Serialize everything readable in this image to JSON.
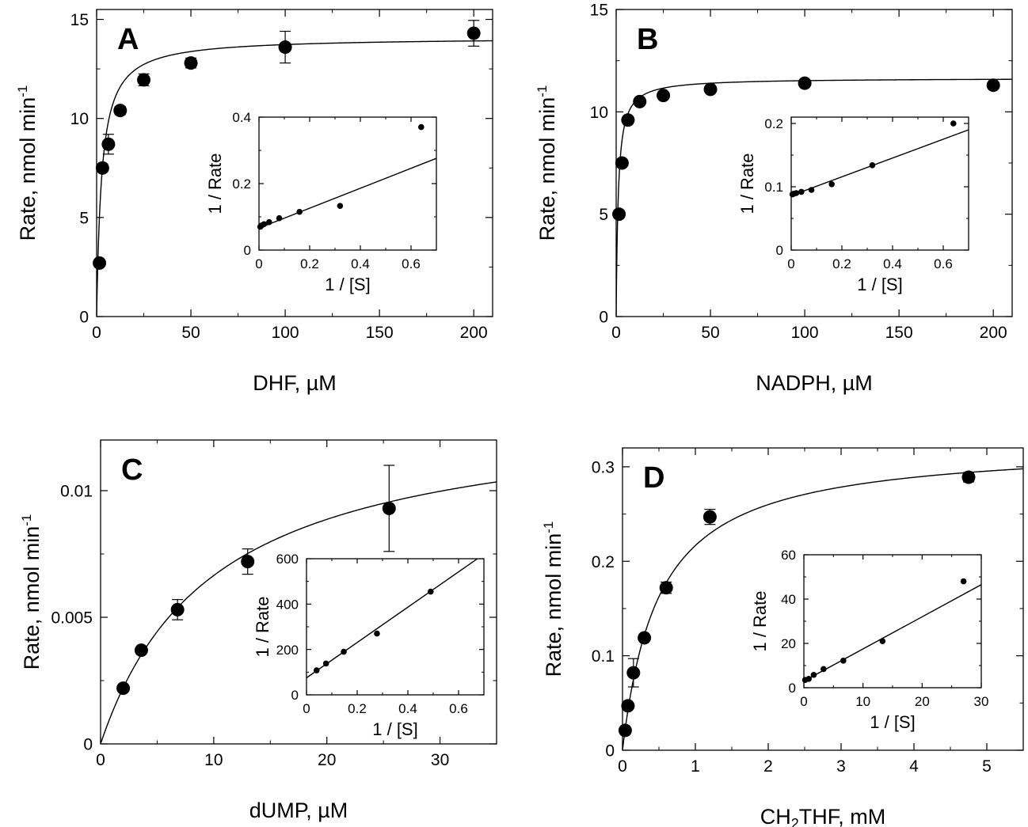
{
  "chart_data": [
    {
      "type": "scatter",
      "panel_label": "A",
      "xlabel": "DHF, µM",
      "ylabel": "Rate, nmol min",
      "ylabel_sup": "-1",
      "xlim": [
        0,
        210
      ],
      "ylim": [
        0,
        15.5
      ],
      "xticks": [
        0,
        50,
        100,
        150,
        200
      ],
      "xtick_labels": [
        "0",
        "50",
        "100",
        "150",
        "200"
      ],
      "yticks": [
        0,
        5,
        10,
        15
      ],
      "ytick_labels": [
        "0",
        "5",
        "10",
        "15"
      ],
      "points": [
        {
          "x": 1.5,
          "y": 2.7,
          "err": 0.15
        },
        {
          "x": 3.1,
          "y": 7.5,
          "err": 0.2
        },
        {
          "x": 6.25,
          "y": 8.7,
          "err": 0.5
        },
        {
          "x": 12.5,
          "y": 10.4,
          "err": 0.2
        },
        {
          "x": 25,
          "y": 11.95,
          "err": 0.3
        },
        {
          "x": 50,
          "y": 12.8,
          "err": 0.25
        },
        {
          "x": 100,
          "y": 13.6,
          "err": 0.8
        },
        {
          "x": 200,
          "y": 14.3,
          "err": 0.65
        }
      ],
      "fit": {
        "model": "michaelis-menten",
        "vmax": 14.1,
        "km": 2.7
      },
      "inset": {
        "xlabel": "1 / [S]",
        "ylabel": "1 / Rate",
        "xlim": [
          0,
          0.7
        ],
        "ylim": [
          0,
          0.4
        ],
        "xticks": [
          0,
          0.2,
          0.4,
          0.6
        ],
        "xtick_labels": [
          "0",
          "0.2",
          "0.4",
          "0.6"
        ],
        "yticks": [
          0,
          0.2,
          0.4
        ],
        "ytick_labels": [
          "0",
          "0.2",
          "0.4"
        ],
        "points": [
          {
            "x": 0.005,
            "y": 0.07
          },
          {
            "x": 0.01,
            "y": 0.074
          },
          {
            "x": 0.02,
            "y": 0.078
          },
          {
            "x": 0.04,
            "y": 0.084
          },
          {
            "x": 0.08,
            "y": 0.096
          },
          {
            "x": 0.16,
            "y": 0.115
          },
          {
            "x": 0.32,
            "y": 0.133
          },
          {
            "x": 0.64,
            "y": 0.37
          }
        ],
        "line": {
          "x0": 0,
          "y0": 0.066,
          "x1": 0.7,
          "y1": 0.276
        }
      }
    },
    {
      "type": "scatter",
      "panel_label": "B",
      "xlabel": "NADPH, µM",
      "ylabel": "Rate, nmol min",
      "ylabel_sup": "-1",
      "xlim": [
        0,
        210
      ],
      "ylim": [
        0,
        15
      ],
      "xticks": [
        0,
        50,
        100,
        150,
        200
      ],
      "xtick_labels": [
        "0",
        "50",
        "100",
        "150",
        "200"
      ],
      "yticks": [
        0,
        5,
        10,
        15
      ],
      "ytick_labels": [
        "0",
        "5",
        "10",
        "15"
      ],
      "points": [
        {
          "x": 1.5,
          "y": 5.0,
          "err": 0
        },
        {
          "x": 3.1,
          "y": 7.5,
          "err": 0
        },
        {
          "x": 6.25,
          "y": 9.6,
          "err": 0
        },
        {
          "x": 12.5,
          "y": 10.5,
          "err": 0
        },
        {
          "x": 25,
          "y": 10.8,
          "err": 0
        },
        {
          "x": 50,
          "y": 11.1,
          "err": 0
        },
        {
          "x": 100,
          "y": 11.4,
          "err": 0
        },
        {
          "x": 200,
          "y": 11.3,
          "err": 0
        }
      ],
      "fit": {
        "model": "michaelis-menten",
        "vmax": 11.65,
        "km": 1.1
      },
      "inset": {
        "xlabel": "1 / [S]",
        "ylabel": "1 / Rate",
        "xlim": [
          0,
          0.7
        ],
        "ylim": [
          0,
          0.21
        ],
        "xticks": [
          0,
          0.2,
          0.4,
          0.6
        ],
        "xtick_labels": [
          "0",
          "0.2",
          "0.4",
          "0.6"
        ],
        "yticks": [
          0,
          0.1,
          0.2
        ],
        "ytick_labels": [
          "0",
          "0.1",
          "0.2"
        ],
        "points": [
          {
            "x": 0.005,
            "y": 0.088
          },
          {
            "x": 0.01,
            "y": 0.089
          },
          {
            "x": 0.02,
            "y": 0.09
          },
          {
            "x": 0.04,
            "y": 0.092
          },
          {
            "x": 0.08,
            "y": 0.095
          },
          {
            "x": 0.16,
            "y": 0.104
          },
          {
            "x": 0.32,
            "y": 0.134
          },
          {
            "x": 0.64,
            "y": 0.2
          }
        ],
        "line": {
          "x0": 0,
          "y0": 0.086,
          "x1": 0.7,
          "y1": 0.19
        }
      }
    },
    {
      "type": "scatter",
      "panel_label": "C",
      "xlabel": "dUMP, µM",
      "ylabel": "Rate, nmol min",
      "ylabel_sup": "-1",
      "xlim": [
        0,
        35
      ],
      "ylim": [
        0,
        0.012
      ],
      "xticks": [
        0,
        10,
        20,
        30
      ],
      "xtick_labels": [
        "0",
        "10",
        "20",
        "30"
      ],
      "yticks": [
        0,
        0.005,
        0.01
      ],
      "ytick_labels": [
        "0",
        "0.005",
        "0.01"
      ],
      "points": [
        {
          "x": 2,
          "y": 0.0022,
          "err": 0.0001
        },
        {
          "x": 3.6,
          "y": 0.0037,
          "err": 0.0001
        },
        {
          "x": 6.8,
          "y": 0.0053,
          "err": 0.0004
        },
        {
          "x": 13,
          "y": 0.0072,
          "err": 0.0005
        },
        {
          "x": 25.5,
          "y": 0.0093,
          "err": 0.0017
        }
      ],
      "fit": {
        "model": "michaelis-menten",
        "vmax": 0.0133,
        "km": 10
      },
      "inset": {
        "xlabel": "1 / [S]",
        "ylabel": "1 / Rate",
        "xlim": [
          0,
          0.7
        ],
        "ylim": [
          0,
          600
        ],
        "xticks": [
          0,
          0.2,
          0.4,
          0.6
        ],
        "xtick_labels": [
          "0",
          "0.2",
          "0.4",
          "0.6"
        ],
        "yticks": [
          0,
          200,
          400,
          600
        ],
        "ytick_labels": [
          "0",
          "200",
          "400",
          "600"
        ],
        "points": [
          {
            "x": 0.04,
            "y": 108
          },
          {
            "x": 0.077,
            "y": 138
          },
          {
            "x": 0.147,
            "y": 190
          },
          {
            "x": 0.278,
            "y": 270
          },
          {
            "x": 0.49,
            "y": 455
          }
        ],
        "line": {
          "x0": 0,
          "y0": 75,
          "x1": 0.7,
          "y1": 620
        }
      }
    },
    {
      "type": "scatter",
      "panel_label": "D",
      "xlabel": "CH",
      "xlabel_sub": "2",
      "xlabel_rest": "THF, mM",
      "ylabel": "Rate, nmol min",
      "ylabel_sup": "-1",
      "xlim": [
        0,
        5.5
      ],
      "ylim": [
        0,
        0.32
      ],
      "xticks": [
        0,
        1,
        2,
        3,
        4,
        5
      ],
      "xtick_labels": [
        "0",
        "1",
        "2",
        "3",
        "4",
        "5"
      ],
      "yticks": [
        0,
        0.1,
        0.2,
        0.3
      ],
      "ytick_labels": [
        "0",
        "0.1",
        "0.2",
        "0.3"
      ],
      "points": [
        {
          "x": 0.037,
          "y": 0.021,
          "err": 0.002
        },
        {
          "x": 0.075,
          "y": 0.047,
          "err": 0.003
        },
        {
          "x": 0.15,
          "y": 0.082,
          "err": 0.015
        },
        {
          "x": 0.3,
          "y": 0.119,
          "err": 0.003
        },
        {
          "x": 0.6,
          "y": 0.172,
          "err": 0.006
        },
        {
          "x": 1.2,
          "y": 0.247,
          "err": 0.008
        },
        {
          "x": 4.75,
          "y": 0.289,
          "err": 0.005
        }
      ],
      "fit": {
        "model": "michaelis-menten",
        "vmax": 0.325,
        "km": 0.5
      },
      "inset": {
        "xlabel": "1 / [S]",
        "ylabel": "1 / Rate",
        "xlim": [
          0,
          30
        ],
        "ylim": [
          0,
          60
        ],
        "xticks": [
          0,
          10,
          20,
          30
        ],
        "xtick_labels": [
          "0",
          "10",
          "20",
          "30"
        ],
        "yticks": [
          0,
          20,
          40,
          60
        ],
        "ytick_labels": [
          "0",
          "20",
          "40",
          "60"
        ],
        "points": [
          {
            "x": 0.21,
            "y": 3.5
          },
          {
            "x": 0.83,
            "y": 4.0
          },
          {
            "x": 1.67,
            "y": 5.8
          },
          {
            "x": 3.33,
            "y": 8.4
          },
          {
            "x": 6.67,
            "y": 12.2
          },
          {
            "x": 13.3,
            "y": 21
          },
          {
            "x": 27,
            "y": 48
          }
        ],
        "line": {
          "x0": 0,
          "y0": 3,
          "x1": 30,
          "y1": 46.5
        }
      }
    }
  ]
}
